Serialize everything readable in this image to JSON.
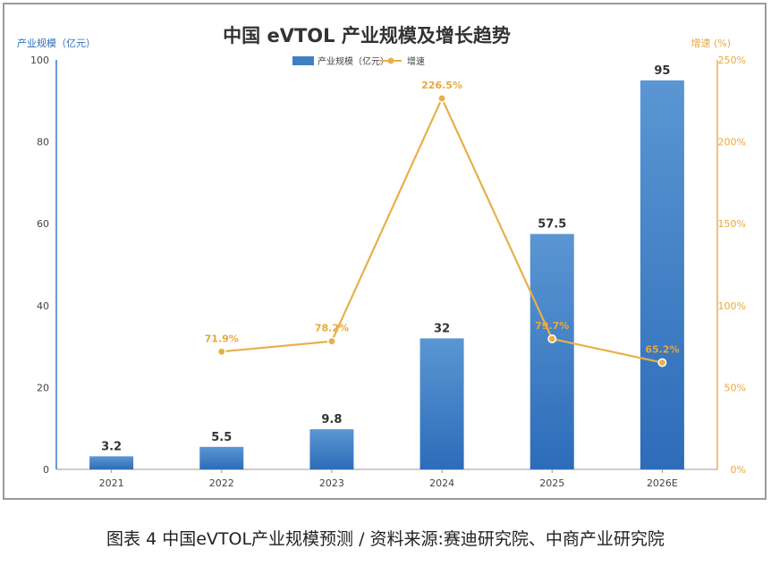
{
  "caption": "图表 4 中国eVTOL产业规模预测 / 资料来源:赛迪研究院、中商产业研究院",
  "chart_data": {
    "type": "bar+line",
    "title": "中国 eVTOL 产业规模及增长趋势",
    "categories": [
      "2021",
      "2022",
      "2023",
      "2024",
      "2025",
      "2026E"
    ],
    "y_left": {
      "label": "产业规模（亿元）",
      "range": [
        0,
        100
      ],
      "ticks": [
        "0",
        "20",
        "40",
        "60",
        "80",
        "100"
      ]
    },
    "y_right": {
      "label": "增速 (%)",
      "range": [
        0,
        250
      ],
      "ticks": [
        "0%",
        "50%",
        "100%",
        "150%",
        "200%",
        "250%"
      ]
    },
    "series": [
      {
        "name": "产业规模（亿元）",
        "kind": "bar",
        "axis": "left",
        "values": [
          3.2,
          5.5,
          9.8,
          32,
          57.5,
          95
        ],
        "labels": [
          "3.2",
          "5.5",
          "9.8",
          "32",
          "57.5",
          "95"
        ]
      },
      {
        "name": "增速",
        "kind": "line",
        "axis": "right",
        "values": [
          null,
          71.9,
          78.2,
          226.5,
          79.7,
          65.2
        ],
        "labels": [
          "",
          "71.9%",
          "78.2%",
          "226.5%",
          "79.7%",
          "65.2%"
        ]
      }
    ],
    "legend": "top-center",
    "grid": false,
    "colors": {
      "bar_top": "#5b96d3",
      "bar_bottom": "#2c6cb9",
      "line": "#e8b04a",
      "left_axis": "#3a7cc4",
      "right_axis": "#e8b04a"
    }
  }
}
